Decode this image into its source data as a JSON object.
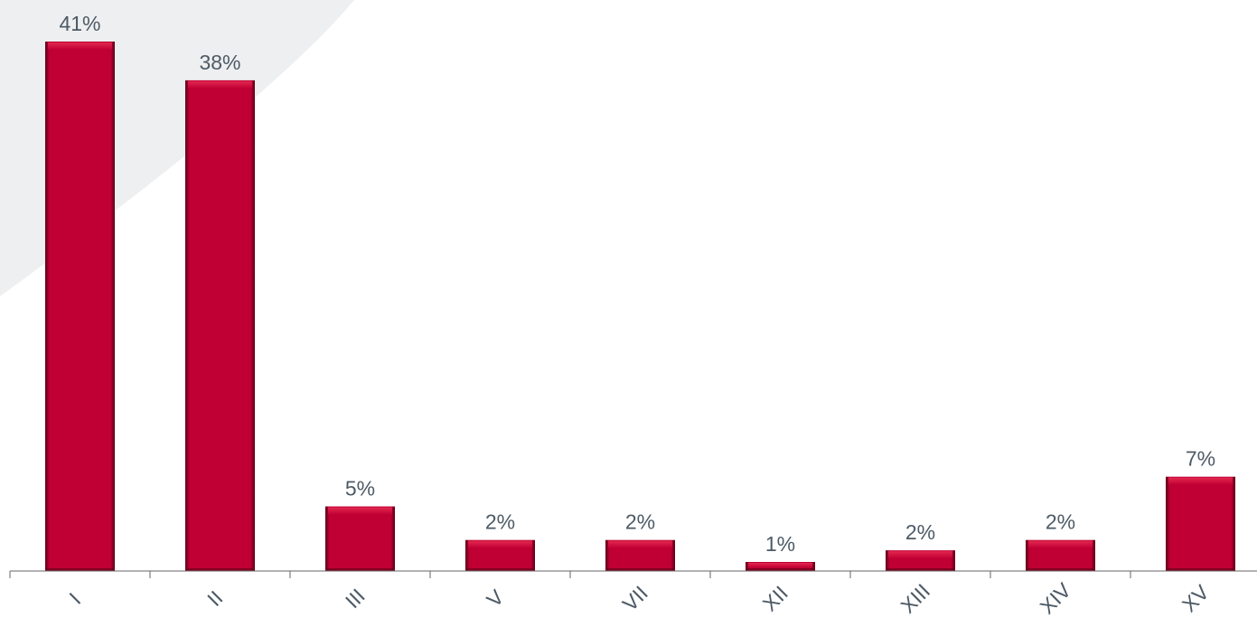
{
  "chart_data": {
    "type": "bar",
    "categories": [
      "I",
      "II",
      "III",
      "V",
      "VII",
      "XII",
      "XIII",
      "XIV",
      "XV"
    ],
    "values": [
      41,
      38,
      5,
      2,
      2,
      1,
      2,
      2,
      7
    ],
    "value_labels": [
      "41%",
      "38%",
      "5%",
      "2%",
      "2%",
      "1%",
      "2%",
      "2%",
      "7%"
    ],
    "plotted_values": [
      41,
      38,
      5,
      2.4,
      2.4,
      0.7,
      1.6,
      2.4,
      7.3
    ],
    "unit": "%",
    "ylim": [
      0,
      41
    ],
    "grid": false,
    "legend": "none"
  },
  "colors": {
    "bar_fill": "#c00034",
    "bar_highlight": "#e2274f",
    "bar_shadow": "#5a0016",
    "label_text": "#4d5a66",
    "axis": "#666666",
    "background_shape": "#eeeff0"
  }
}
